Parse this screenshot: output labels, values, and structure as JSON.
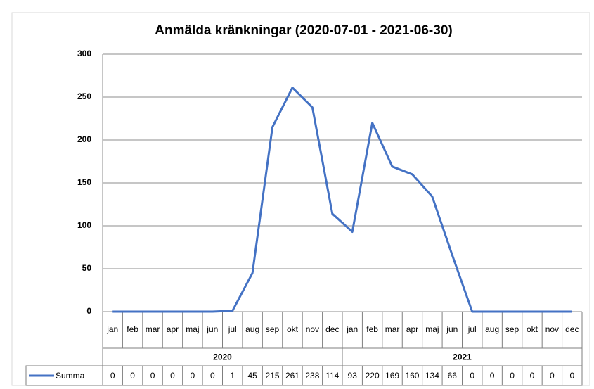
{
  "chart_data": {
    "type": "line",
    "title": "Anmälda kränkningar (2020-07-01 - 2021-06-30)",
    "categories": [
      "jan",
      "feb",
      "mar",
      "apr",
      "maj",
      "jun",
      "jul",
      "aug",
      "sep",
      "okt",
      "nov",
      "dec",
      "jan",
      "feb",
      "mar",
      "apr",
      "maj",
      "jun",
      "jul",
      "aug",
      "sep",
      "okt",
      "nov",
      "dec"
    ],
    "category_groups": [
      "2020",
      "2021"
    ],
    "series": [
      {
        "name": "Summa",
        "color": "#4472c4",
        "values": [
          0,
          0,
          0,
          0,
          0,
          0,
          1,
          45,
          215,
          261,
          238,
          114,
          93,
          220,
          169,
          160,
          134,
          66,
          0,
          0,
          0,
          0,
          0,
          0
        ]
      }
    ],
    "ylim": [
      0,
      300
    ],
    "yticks": [
      0,
      50,
      100,
      150,
      200,
      250,
      300
    ],
    "grid": true,
    "data_table": true
  }
}
